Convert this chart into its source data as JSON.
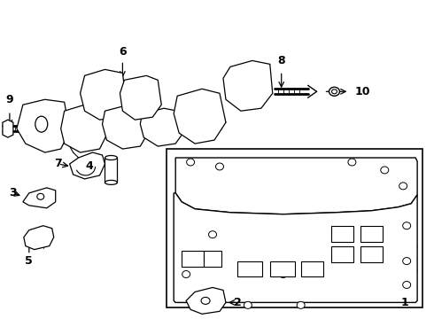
{
  "bg": "#ffffff",
  "lc": "#000000",
  "figsize": [
    4.9,
    3.6
  ],
  "dpi": 100,
  "xlim": [
    0,
    490
  ],
  "ylim": [
    0,
    360
  ]
}
